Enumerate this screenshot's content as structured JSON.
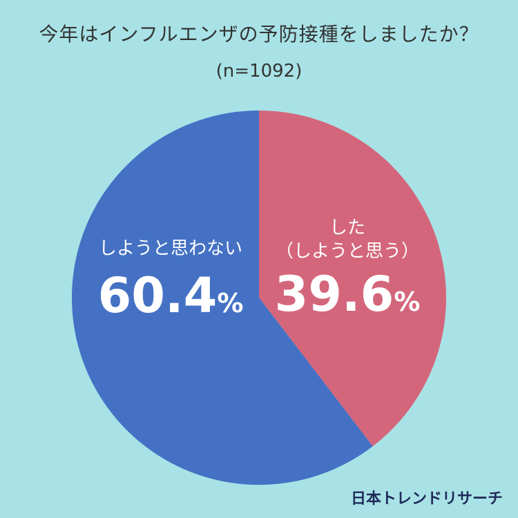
{
  "title": "今年はインフルエンザの予防接種をしましたか？",
  "subtitle": "(n=1092)",
  "brand": "日本トレンドリサーチ",
  "chart_data": {
    "type": "pie",
    "title": "今年はインフルエンザの予防接種をしましたか？",
    "subtitle": "(n=1092)",
    "slices": [
      {
        "label_lines": [
          "した",
          "（しようと思う）"
        ],
        "value": 39.6,
        "value_text": "39.6",
        "unit": "%",
        "color": "#d4667b"
      },
      {
        "label_lines": [
          "しようと思わない"
        ],
        "value": 60.4,
        "value_text": "60.4",
        "unit": "%",
        "color": "#4471c4"
      }
    ],
    "start_angle": "12 o'clock",
    "direction": "clockwise"
  }
}
